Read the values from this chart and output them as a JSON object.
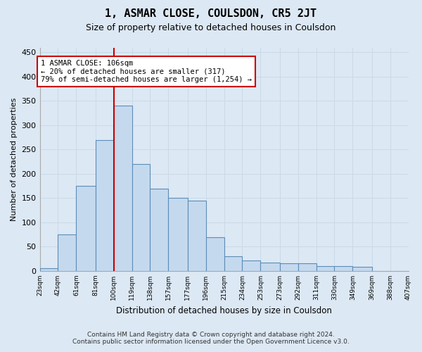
{
  "title": "1, ASMAR CLOSE, COULSDON, CR5 2JT",
  "subtitle": "Size of property relative to detached houses in Coulsdon",
  "xlabel": "Distribution of detached houses by size in Coulsdon",
  "ylabel": "Number of detached properties",
  "footer_line1": "Contains HM Land Registry data © Crown copyright and database right 2024.",
  "footer_line2": "Contains public sector information licensed under the Open Government Licence v3.0.",
  "annotation_line1": "1 ASMAR CLOSE: 106sqm",
  "annotation_line2": "← 20% of detached houses are smaller (317)",
  "annotation_line3": "79% of semi-detached houses are larger (1,254) →",
  "bar_edges": [
    23,
    42,
    61,
    81,
    100,
    119,
    138,
    157,
    177,
    196,
    215,
    234,
    253,
    273,
    292,
    311,
    330,
    349,
    369,
    388,
    407
  ],
  "bar_values": [
    5,
    75,
    175,
    270,
    340,
    220,
    170,
    150,
    145,
    70,
    30,
    22,
    18,
    16,
    16,
    10,
    10,
    8,
    0,
    0
  ],
  "bar_color": "#c5d9ee",
  "bar_edge_color": "#5b8db8",
  "vline_color": "#cc0000",
  "vline_x": 100,
  "ylim": [
    0,
    460
  ],
  "yticks": [
    0,
    50,
    100,
    150,
    200,
    250,
    300,
    350,
    400,
    450
  ],
  "grid_color": "#c8d8e8",
  "bg_color": "#dce8f4",
  "annotation_box_facecolor": "#ffffff",
  "annotation_box_edgecolor": "#cc0000",
  "title_fontsize": 11,
  "subtitle_fontsize": 9,
  "footer_fontsize": 6.5
}
